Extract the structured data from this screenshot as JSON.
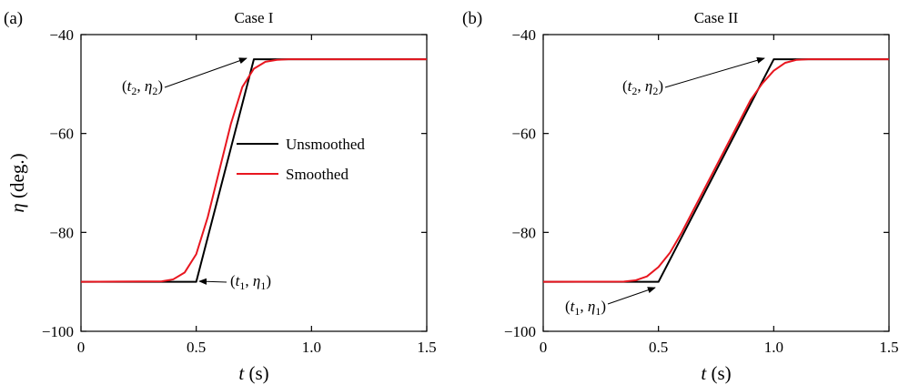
{
  "chart_data": [
    {
      "type": "line",
      "panel_label": "(a)",
      "title": "Case I",
      "xlabel": {
        "var": "t",
        "unit": " (s)"
      },
      "ylabel": {
        "var": "η",
        "unit": " (deg.)"
      },
      "xlim": [
        0,
        1.5
      ],
      "ylim": [
        -100,
        -40
      ],
      "xticks": [
        0,
        0.5,
        1.0,
        1.5
      ],
      "xtick_labels": [
        "0",
        "0.5",
        "1.0",
        "1.5"
      ],
      "yticks": [
        -100,
        -80,
        -60,
        -40
      ],
      "ytick_labels": [
        "−100",
        "−80",
        "−60",
        "−40"
      ],
      "grid": false,
      "legend": {
        "placement": "center",
        "entries": [
          "Unsmoothed",
          "Smoothed"
        ]
      },
      "series": [
        {
          "name": "Unsmoothed",
          "color": "#000000",
          "x": [
            0,
            0.5,
            0.75,
            1.5
          ],
          "y": [
            -90,
            -90,
            -45,
            -45
          ]
        },
        {
          "name": "Smoothed",
          "color": "#e8161f",
          "x": [
            0,
            0.35,
            0.4,
            0.45,
            0.5,
            0.55,
            0.6,
            0.65,
            0.7,
            0.75,
            0.8,
            0.85,
            0.9,
            1.5
          ],
          "y": [
            -90,
            -89.9,
            -89.5,
            -88.1,
            -84.4,
            -76.9,
            -67.5,
            -58.1,
            -50.6,
            -46.9,
            -45.5,
            -45.1,
            -45,
            -45
          ]
        }
      ],
      "annotations": [
        {
          "t_sub": "2",
          "eta_sub": "2",
          "x": 0.75,
          "y": -45
        },
        {
          "t_sub": "1",
          "eta_sub": "1",
          "x": 0.5,
          "y": -90
        }
      ]
    },
    {
      "type": "line",
      "panel_label": "(b)",
      "title": "Case II",
      "xlabel": {
        "var": "t",
        "unit": " (s)"
      },
      "xlim": [
        0,
        1.5
      ],
      "ylim": [
        -100,
        -40
      ],
      "xticks": [
        0,
        0.5,
        1.0,
        1.5
      ],
      "xtick_labels": [
        "0",
        "0.5",
        "1.0",
        "1.5"
      ],
      "yticks": [
        -100,
        -80,
        -60,
        -40
      ],
      "ytick_labels": [
        "−100",
        "−80",
        "−60",
        "−40"
      ],
      "grid": false,
      "series": [
        {
          "name": "Unsmoothed",
          "color": "#000000",
          "x": [
            0,
            0.5,
            1.0,
            1.5
          ],
          "y": [
            -90,
            -90,
            -45,
            -45
          ]
        },
        {
          "name": "Smoothed",
          "color": "#e8161f",
          "x": [
            0,
            0.35,
            0.4,
            0.45,
            0.5,
            0.55,
            0.6,
            0.9,
            0.95,
            1.0,
            1.05,
            1.1,
            1.15,
            1.5
          ],
          "y": [
            -90,
            -89.95,
            -89.7,
            -88.9,
            -87.0,
            -84.1,
            -80.1,
            -53.2,
            -49.9,
            -47.3,
            -45.7,
            -45.1,
            -45,
            -45
          ]
        }
      ],
      "annotations": [
        {
          "t_sub": "2",
          "eta_sub": "2",
          "x": 1.0,
          "y": -45
        },
        {
          "t_sub": "1",
          "eta_sub": "1",
          "x": 0.5,
          "y": -90
        }
      ]
    }
  ]
}
